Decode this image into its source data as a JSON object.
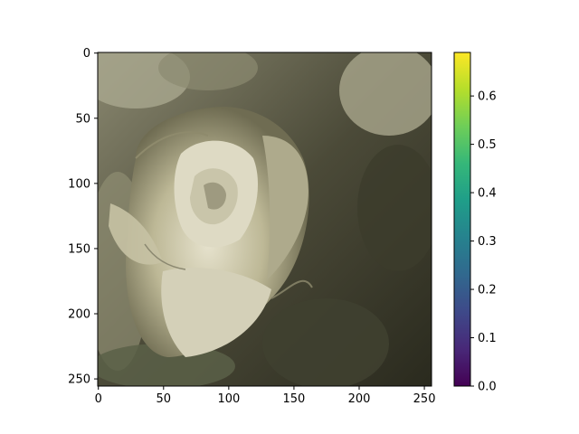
{
  "chart_data": {
    "type": "heatmap",
    "image_subject": "close-up photograph of a pale cream rose against dark green foliage",
    "x_range": [
      0,
      255
    ],
    "y_range": [
      0,
      255
    ],
    "y_inverted": true,
    "x_ticks": [
      "0",
      "50",
      "100",
      "150",
      "200",
      "250"
    ],
    "y_ticks": [
      "0",
      "50",
      "100",
      "150",
      "200",
      "250"
    ],
    "x_tick_values": [
      0,
      50,
      100,
      150,
      200,
      250
    ],
    "y_tick_values": [
      0,
      50,
      100,
      150,
      200,
      250
    ],
    "colorbar": {
      "colormap": "viridis",
      "range": [
        0.0,
        0.69
      ],
      "ticks": [
        "0.0",
        "0.1",
        "0.2",
        "0.3",
        "0.4",
        "0.5",
        "0.6"
      ],
      "tick_values": [
        0.0,
        0.1,
        0.2,
        0.3,
        0.4,
        0.5,
        0.6
      ],
      "colors": [
        "#440154",
        "#482878",
        "#3e4989",
        "#31688e",
        "#26828e",
        "#1f9e89",
        "#35b779",
        "#6ece58",
        "#b5de2b",
        "#fde725"
      ]
    },
    "title": "",
    "xlabel": "",
    "ylabel": ""
  }
}
